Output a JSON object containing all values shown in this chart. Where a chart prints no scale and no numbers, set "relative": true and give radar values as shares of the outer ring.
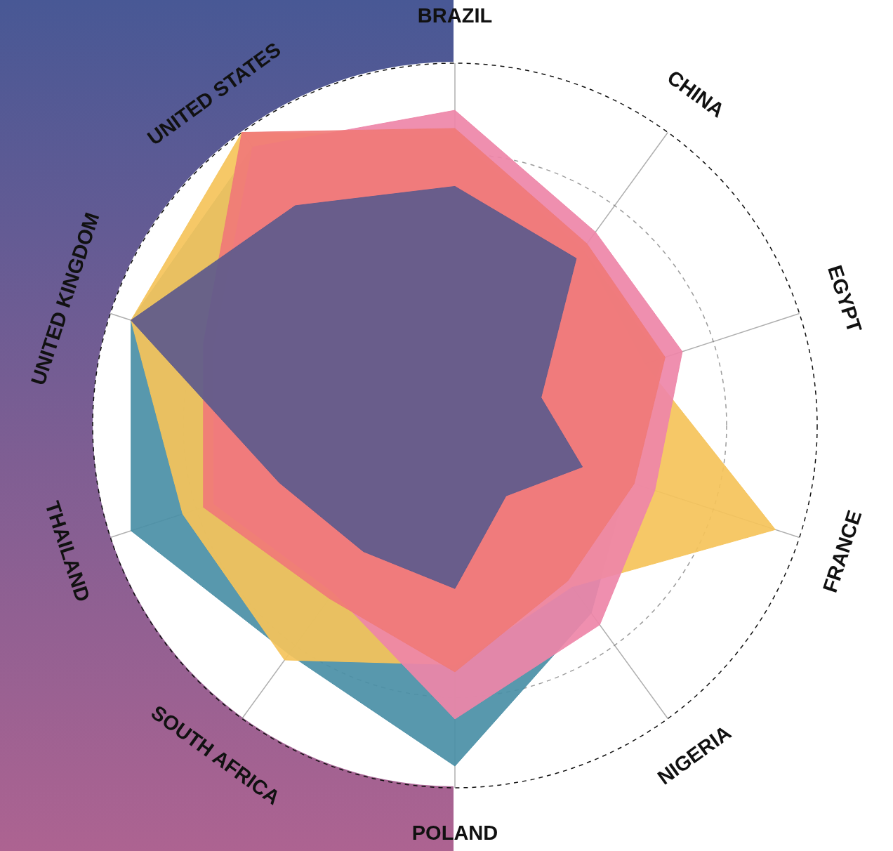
{
  "chart_data": {
    "type": "radar",
    "relative": true,
    "grid": true,
    "legend": false,
    "categories": [
      "BRAZIL",
      "CHINA",
      "EGYPT",
      "FRANCE",
      "NIGERIA",
      "POLAND",
      "SOUTH AFRICA",
      "THAILAND",
      "UNITED KINGDOM",
      "UNITED STATES"
    ],
    "series": [
      {
        "color": "#4a8fa6",
        "values": [
          0.8,
          0.6,
          0.6,
          0.5,
          0.64,
          0.94,
          0.78,
          0.94,
          0.94,
          0.95
        ]
      },
      {
        "color": "#f5c35a",
        "values": [
          0.8,
          0.6,
          0.55,
          0.93,
          0.55,
          0.66,
          0.8,
          0.79,
          0.94,
          1.0
        ]
      },
      {
        "color": "#ee85a8",
        "values": [
          0.87,
          0.66,
          0.66,
          0.58,
          0.68,
          0.81,
          0.57,
          0.7,
          0.7,
          0.95
        ]
      },
      {
        "color": "#f07a78",
        "values": [
          0.82,
          0.62,
          0.61,
          0.52,
          0.53,
          0.68,
          0.59,
          0.73,
          0.73,
          1.0
        ]
      },
      {
        "color": "#5d5a8c",
        "values": [
          0.66,
          0.57,
          0.25,
          0.37,
          0.24,
          0.45,
          0.43,
          0.51,
          0.94,
          0.75
        ]
      }
    ]
  }
}
